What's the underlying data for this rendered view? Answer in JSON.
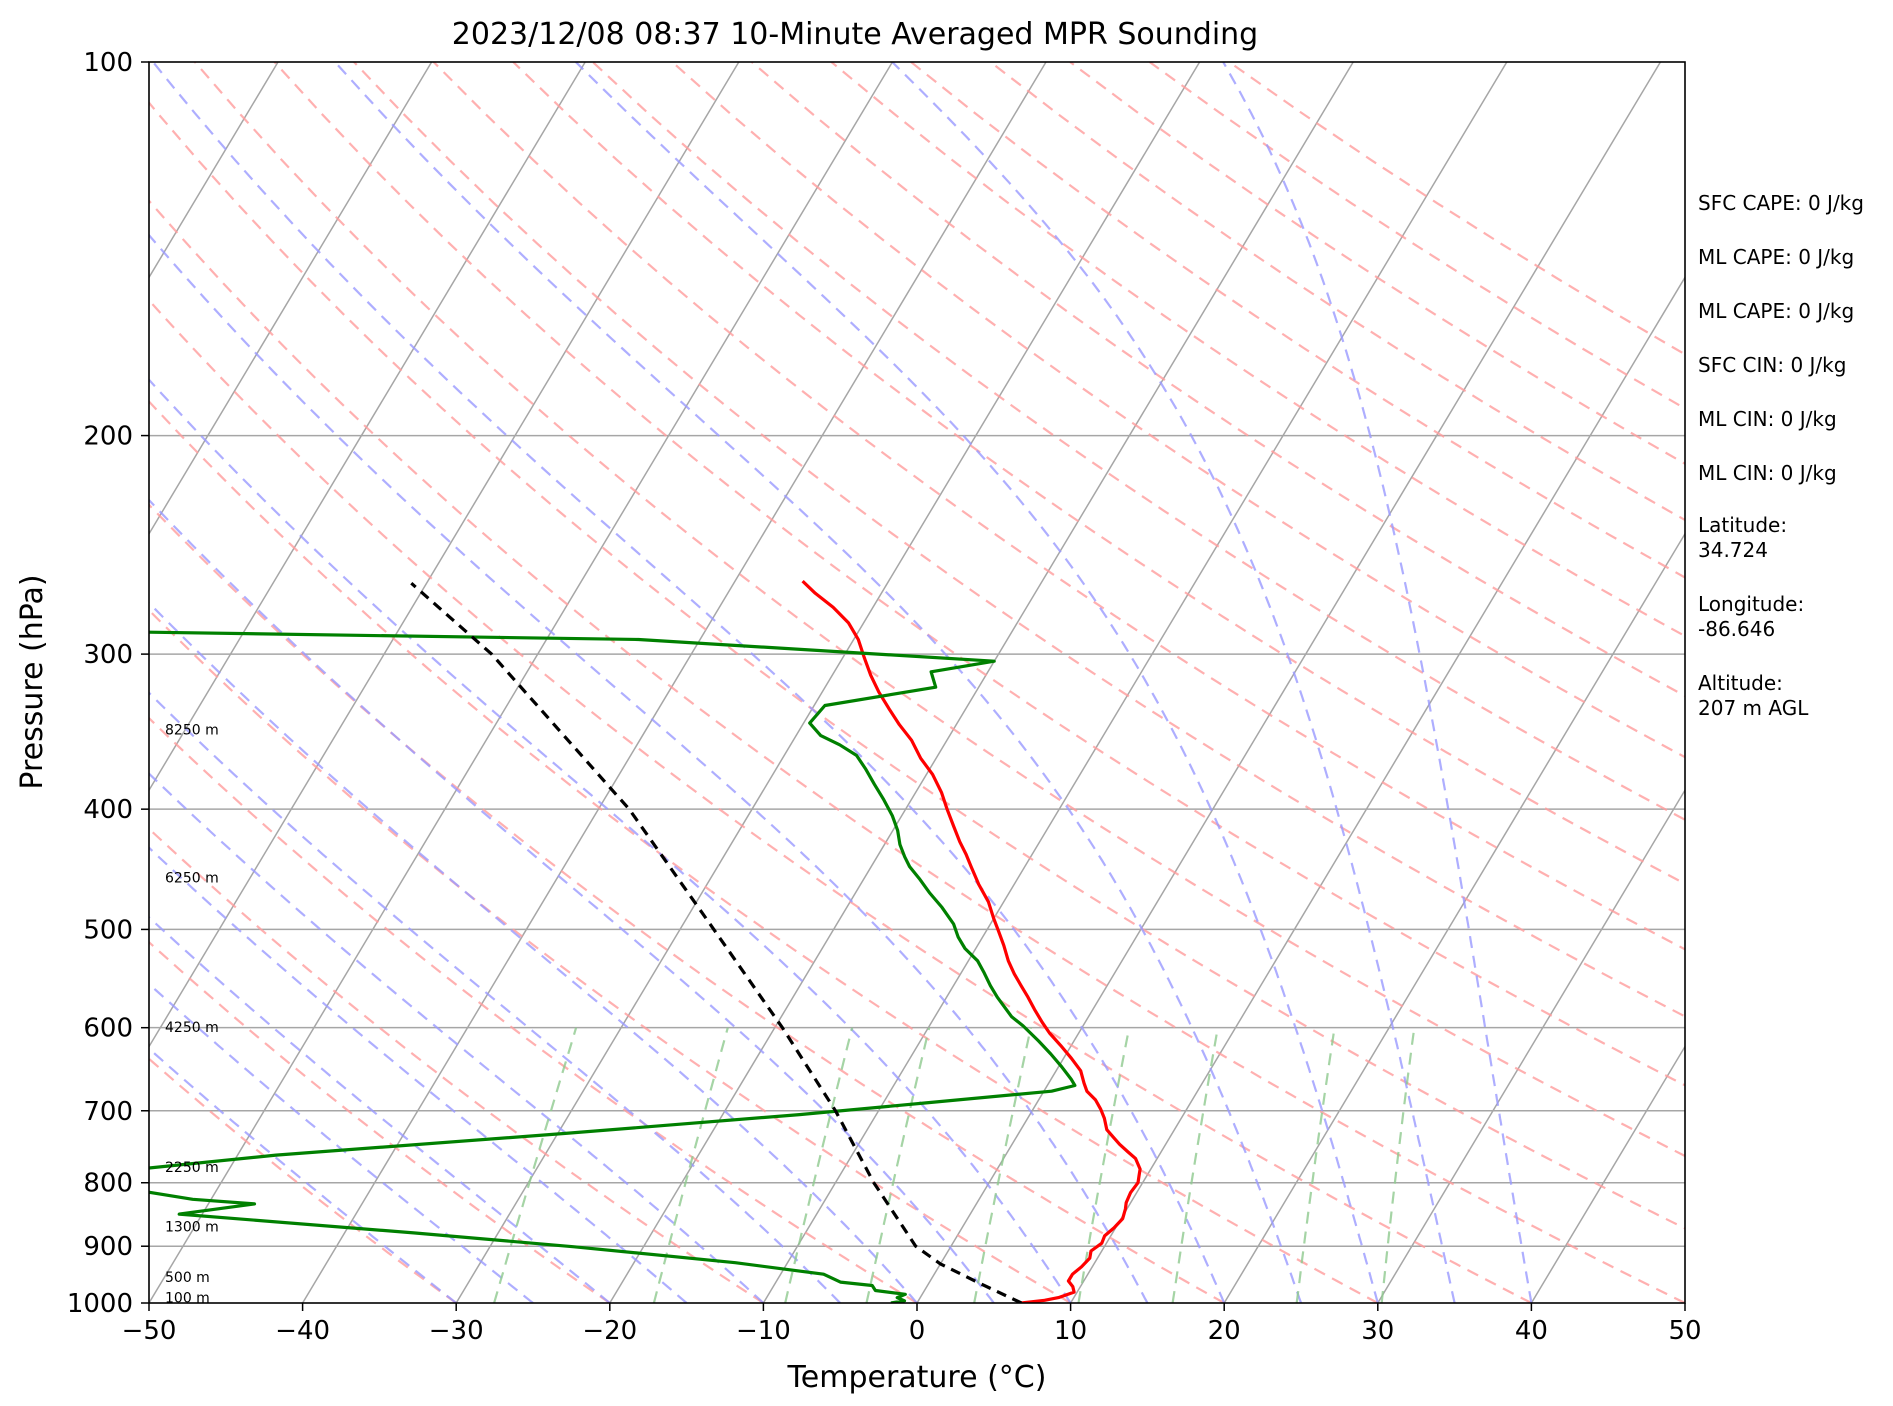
{
  "chart_data": {
    "type": "skew-t",
    "title": "2023/12/08 08:37 10-Minute Averaged MPR Sounding",
    "xlabel": "Temperature (°C)",
    "ylabel": "Pressure (hPa)",
    "xlim": [
      -50,
      50
    ],
    "ylim": [
      1000,
      100
    ],
    "x_ticks": [
      -50,
      -40,
      -30,
      -20,
      -10,
      0,
      10,
      20,
      30,
      40,
      50
    ],
    "x_tick_labels": [
      "−50",
      "−40",
      "−30",
      "−20",
      "−10",
      "0",
      "10",
      "20",
      "30",
      "40",
      "50"
    ],
    "y_ticks": [
      1000,
      900,
      800,
      700,
      600,
      500,
      400,
      300,
      200,
      100
    ],
    "y_tick_labels": [
      "1000",
      "900",
      "800",
      "700",
      "600",
      "500",
      "400",
      "300",
      "200",
      "100"
    ],
    "grid": true,
    "skew": 48.4,
    "colors": {
      "temperature": "#ff0000",
      "dewpoint": "#008000",
      "parcel": "#000000",
      "isotherm": "#a6a6a6",
      "dry_adiabat": "#ff9c9c",
      "moist_adiabat": "#9a9aff",
      "mixing_ratio": "#8fc98f"
    },
    "series": [
      {
        "name": "Temperature",
        "points": [
          [
            6.8,
            1000
          ],
          [
            8.2,
            995
          ],
          [
            9.0,
            990
          ],
          [
            9.8,
            980
          ],
          [
            9.5,
            970
          ],
          [
            9.0,
            960
          ],
          [
            9.0,
            948
          ],
          [
            9.3,
            935
          ],
          [
            9.5,
            920
          ],
          [
            9.3,
            908
          ],
          [
            9.7,
            895
          ],
          [
            9.6,
            883
          ],
          [
            9.9,
            870
          ],
          [
            10.1,
            855
          ],
          [
            9.9,
            840
          ],
          [
            9.7,
            830
          ],
          [
            9.6,
            815
          ],
          [
            9.7,
            800
          ],
          [
            9.5,
            790
          ],
          [
            9.3,
            780
          ],
          [
            8.6,
            765
          ],
          [
            7.8,
            755
          ],
          [
            7.0,
            745
          ],
          [
            6.3,
            735
          ],
          [
            5.6,
            725
          ],
          [
            5.0,
            710
          ],
          [
            4.4,
            698
          ],
          [
            3.7,
            686
          ],
          [
            2.8,
            675
          ],
          [
            2.3,
            665
          ],
          [
            1.6,
            650
          ],
          [
            0.5,
            635
          ],
          [
            -0.7,
            620
          ],
          [
            -1.9,
            606
          ],
          [
            -2.8,
            594
          ],
          [
            -3.8,
            580
          ],
          [
            -4.7,
            567
          ],
          [
            -5.6,
            555
          ],
          [
            -6.5,
            543
          ],
          [
            -7.4,
            530
          ],
          [
            -8.3,
            515
          ],
          [
            -9.3,
            500
          ],
          [
            -10.0,
            490
          ],
          [
            -11.0,
            475
          ],
          [
            -12.3,
            460
          ],
          [
            -13.5,
            445
          ],
          [
            -14.3,
            435
          ],
          [
            -15.2,
            425
          ],
          [
            -16.2,
            413
          ],
          [
            -17.3,
            400
          ],
          [
            -18.3,
            388
          ],
          [
            -19.6,
            375
          ],
          [
            -21.0,
            364
          ],
          [
            -22.3,
            352
          ],
          [
            -23.7,
            342
          ],
          [
            -25.0,
            332
          ],
          [
            -26.3,
            322
          ],
          [
            -27.5,
            312
          ],
          [
            -28.6,
            302
          ],
          [
            -29.7,
            292
          ],
          [
            -31.0,
            283
          ],
          [
            -32.6,
            275
          ],
          [
            -34.3,
            268
          ],
          [
            -35.6,
            262
          ]
        ]
      },
      {
        "name": "Dewpoint",
        "points": [
          [
            -1.7,
            1000
          ],
          [
            -0.9,
            996
          ],
          [
            -1.5,
            990
          ],
          [
            -1.1,
            984
          ],
          [
            -3.2,
            977
          ],
          [
            -3.6,
            968
          ],
          [
            -5.8,
            962
          ],
          [
            -7.2,
            948
          ],
          [
            -13.4,
            928
          ],
          [
            -24.5,
            901
          ],
          [
            -35.5,
            878
          ],
          [
            -51.5,
            848
          ],
          [
            -47.0,
            832
          ],
          [
            -51.2,
            825
          ],
          [
            -57.0,
            805
          ],
          [
            -56.0,
            795
          ],
          [
            -58.0,
            785
          ],
          [
            -47.5,
            760
          ],
          [
            -29.5,
            730
          ],
          [
            -15.0,
            705
          ],
          [
            -7.3,
            690
          ],
          [
            0.5,
            675
          ],
          [
            1.8,
            668
          ],
          [
            1.3,
            660
          ],
          [
            0.2,
            645
          ],
          [
            -1.0,
            630
          ],
          [
            -2.3,
            615
          ],
          [
            -3.9,
            598
          ],
          [
            -5.0,
            588
          ],
          [
            -5.8,
            578
          ],
          [
            -6.7,
            567
          ],
          [
            -7.6,
            555
          ],
          [
            -8.5,
            542
          ],
          [
            -9.4,
            530
          ],
          [
            -10.7,
            518
          ],
          [
            -11.6,
            507
          ],
          [
            -12.4,
            495
          ],
          [
            -13.8,
            480
          ],
          [
            -15.2,
            467
          ],
          [
            -16.4,
            455
          ],
          [
            -17.5,
            445
          ],
          [
            -18.2,
            437
          ],
          [
            -19.0,
            427
          ],
          [
            -19.7,
            416
          ],
          [
            -20.6,
            405
          ],
          [
            -21.8,
            393
          ],
          [
            -23.0,
            382
          ],
          [
            -24.2,
            371
          ],
          [
            -25.3,
            362
          ],
          [
            -26.8,
            355
          ],
          [
            -28.4,
            349
          ],
          [
            -29.6,
            341
          ],
          [
            -29.3,
            330
          ],
          [
            -22.8,
            319
          ],
          [
            -23.7,
            310
          ],
          [
            -20.0,
            304
          ],
          [
            -44.0,
            292
          ],
          [
            -85.0,
            287
          ]
        ]
      },
      {
        "name": "Parcel",
        "points": [
          [
            6.8,
            1000
          ],
          [
            3.4,
            965
          ],
          [
            0.0,
            930
          ],
          [
            -2.3,
            900
          ],
          [
            -7.5,
            800
          ],
          [
            -12.8,
            700
          ],
          [
            -19.5,
            600
          ],
          [
            -27.8,
            500
          ],
          [
            -38.0,
            400
          ],
          [
            -53.0,
            300
          ],
          [
            -61.0,
            263
          ]
        ]
      }
    ],
    "height_labels": [
      {
        "p": 990,
        "text": "100 m"
      },
      {
        "p": 953,
        "text": "500 m"
      },
      {
        "p": 868,
        "text": "1300 m"
      },
      {
        "p": 777,
        "text": "2250 m"
      },
      {
        "p": 599,
        "text": "4250 m"
      },
      {
        "p": 454,
        "text": "6250 m"
      },
      {
        "p": 345,
        "text": "8250 m"
      }
    ],
    "annotations": [
      "SFC CAPE: 0 J/kg",
      "ML CAPE: 0 J/kg",
      "ML CAPE: 0 J/kg",
      "SFC CIN: 0 J/kg",
      "ML CIN: 0 J/kg",
      "ML CIN: 0 J/kg",
      "Latitude:",
      "34.724",
      "Longitude:",
      "-86.646",
      "Altitude:",
      "207 m AGL"
    ]
  }
}
